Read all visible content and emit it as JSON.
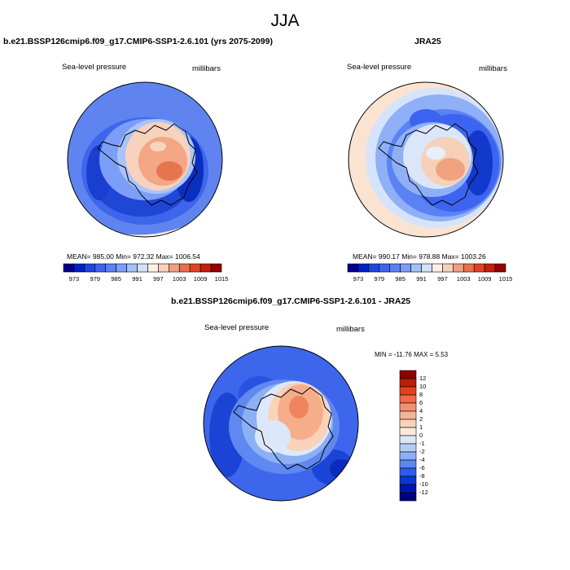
{
  "figure": {
    "title": "JJA"
  },
  "chart_data": [
    {
      "type": "heatmap",
      "projection": "south-polar-stereographic",
      "title": "b.e21.BSSP126cmip6.f09_g17.CMIP6-SSP1-2.6.101 (yrs 2075-2099)",
      "field_label": "Sea-level pressure",
      "units_label": "millibars",
      "stats_text": "MEAN= 985.00  Min= 972.32  Max= 1006.54",
      "stats": {
        "mean": 985.0,
        "min": 972.32,
        "max": 1006.54
      },
      "colorbar": {
        "orientation": "horizontal",
        "tick_labels": [
          "973",
          "979",
          "985",
          "991",
          "997",
          "1003",
          "1009",
          "1015"
        ],
        "colors": [
          "#00008c",
          "#0020c8",
          "#1e46e1",
          "#3c64f0",
          "#5a82f5",
          "#7c9ef8",
          "#a5c0fa",
          "#d2e2fb",
          "#fcf0e6",
          "#f8d0b8",
          "#f0a080",
          "#e8704c",
          "#e04424",
          "#c81e0a",
          "#960000"
        ]
      }
    },
    {
      "type": "heatmap",
      "projection": "south-polar-stereographic",
      "title": "JRA25",
      "field_label": "Sea-level pressure",
      "units_label": "millibars",
      "stats_text": "MEAN= 990.17  Min= 978.88  Max= 1003.26",
      "stats": {
        "mean": 990.17,
        "min": 978.88,
        "max": 1003.26
      },
      "colorbar": {
        "orientation": "horizontal",
        "tick_labels": [
          "973",
          "979",
          "985",
          "991",
          "997",
          "1003",
          "1009",
          "1015"
        ],
        "colors": [
          "#00008c",
          "#0020c8",
          "#1e46e1",
          "#3c64f0",
          "#5a82f5",
          "#7c9ef8",
          "#a5c0fa",
          "#d2e2fb",
          "#fcf0e6",
          "#f8d0b8",
          "#f0a080",
          "#e8704c",
          "#e04424",
          "#c81e0a",
          "#960000"
        ]
      }
    },
    {
      "type": "heatmap",
      "projection": "south-polar-stereographic",
      "title": "b.e21.BSSP126cmip6.f09_g17.CMIP6-SSP1-2.6.101 - JRA25",
      "field_label": "Sea-level pressure",
      "units_label": "millibars",
      "stats_text": "MIN = -11.76 MAX =   5.53",
      "stats": {
        "min": -11.76,
        "max": 5.53
      },
      "colorbar": {
        "orientation": "vertical",
        "tick_labels": [
          "12",
          "10",
          "8",
          "6",
          "4",
          "2",
          "1",
          "0",
          "-1",
          "-2",
          "-4",
          "-6",
          "-8",
          "-10",
          "-12"
        ],
        "colors": [
          "#8c0000",
          "#be1e0a",
          "#e6401e",
          "#f06a46",
          "#f5906e",
          "#f8b496",
          "#fad2b9",
          "#fbeadd",
          "#dce8fa",
          "#b4cdf8",
          "#8cb0f5",
          "#5a87f0",
          "#2d5ceb",
          "#0a37d2",
          "#0014b4",
          "#000082"
        ]
      }
    }
  ]
}
